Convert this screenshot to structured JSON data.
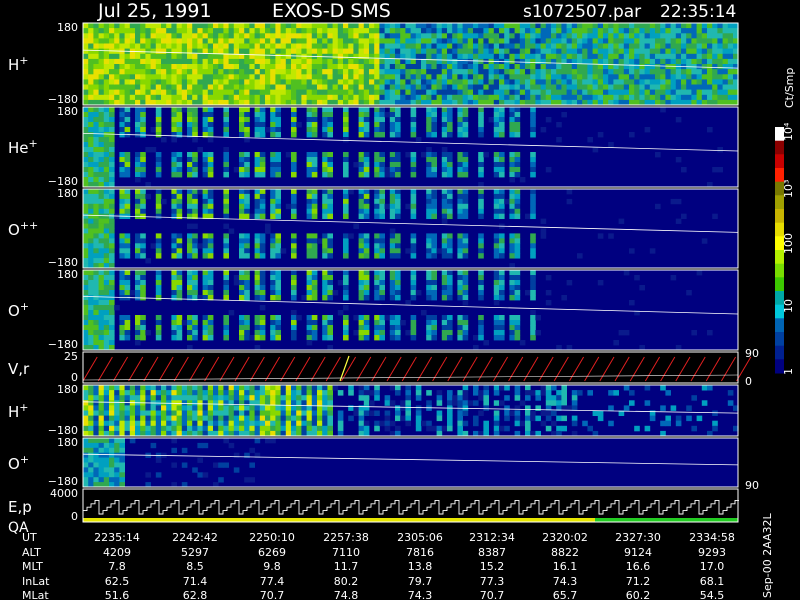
{
  "header": {
    "date": "Jul 25, 1991",
    "instrument": "EXOS-D SMS",
    "file": "s1072507.par",
    "time": "22:35:14"
  },
  "colorbar": {
    "unit": "Ct/Smp",
    "tick_labels": [
      "10⁴",
      "10³",
      "100",
      "10",
      "1"
    ],
    "colors": [
      "#ffffff",
      "#8b0000",
      "#c80000",
      "#ff2000",
      "#787800",
      "#a0a000",
      "#c8b400",
      "#e6dc00",
      "#ffff00",
      "#b4f000",
      "#78dc00",
      "#3cc800",
      "#00a8a8",
      "#00c8dc",
      "#0064b4",
      "#0040a0",
      "#002090",
      "#000080"
    ]
  },
  "colors": {
    "background": "#000000",
    "panel_border": "#ffffff",
    "sawtooth_red": "#e02020",
    "sawtooth_yellow": "#ffff40",
    "qa_yellow": "#e6e600",
    "qa_green": "#22cc22"
  },
  "chart_data": {
    "type": "heatmap",
    "x_axis": {
      "label": "UT",
      "tick_labels": [
        "2235:14",
        "2242:42",
        "2250:10",
        "2257:38",
        "2305:06",
        "2312:34",
        "2320:02",
        "2327:30",
        "2334:58"
      ]
    },
    "panels": [
      {
        "label": "H",
        "charge": "+",
        "ymax": "180",
        "ymin": "−180",
        "type": "heatmap"
      },
      {
        "label": "He",
        "charge": "+",
        "ymax": "180",
        "ymin": "−180",
        "type": "heatmap"
      },
      {
        "label": "O",
        "charge": "++",
        "ymax": "180",
        "ymin": "−180",
        "type": "heatmap"
      },
      {
        "label": "O",
        "charge": "+",
        "ymax": "180",
        "ymin": "−180",
        "type": "heatmap"
      },
      {
        "label": "V,r",
        "ymax": "25",
        "ymin": "0",
        "right_top": "90",
        "right_bottom": "0",
        "type": "line"
      },
      {
        "label": "H",
        "charge": "+",
        "ymax": "180",
        "ymin": "−180",
        "type": "heatmap"
      },
      {
        "label": "O",
        "charge": "+",
        "ymax": "180",
        "ymin": "−180",
        "right_bottom": "90",
        "type": "heatmap"
      },
      {
        "label": "E,p",
        "label2": "QA",
        "ymax": "4000",
        "ymin": "0",
        "type": "line"
      }
    ],
    "orbit_table": [
      {
        "name": "UT",
        "values": [
          "2235:14",
          "2242:42",
          "2250:10",
          "2257:38",
          "2305:06",
          "2312:34",
          "2320:02",
          "2327:30",
          "2334:58"
        ]
      },
      {
        "name": "ALT",
        "values": [
          "4209",
          "5297",
          "6269",
          "7110",
          "7816",
          "8387",
          "8822",
          "9124",
          "9293"
        ]
      },
      {
        "name": "MLT",
        "values": [
          "7.8",
          "8.5",
          "9.8",
          "11.7",
          "13.8",
          "15.2",
          "16.1",
          "16.6",
          "17.0"
        ]
      },
      {
        "name": "InLat",
        "values": [
          "62.5",
          "71.4",
          "77.4",
          "80.2",
          "79.7",
          "77.3",
          "74.3",
          "71.2",
          "68.1"
        ]
      },
      {
        "name": "MLat",
        "values": [
          "51.6",
          "62.8",
          "70.7",
          "74.8",
          "74.3",
          "70.7",
          "65.7",
          "60.2",
          "54.5"
        ]
      }
    ],
    "footer_note": "Sep-00 2AA32L"
  }
}
